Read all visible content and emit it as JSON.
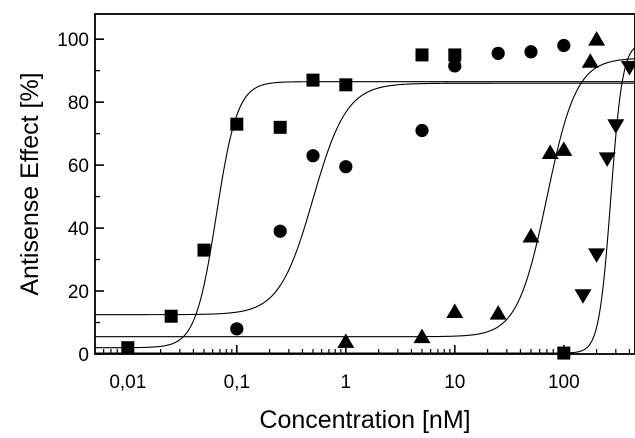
{
  "chart_data": {
    "type": "scatter",
    "title": "",
    "xlabel": "Concentration [nM]",
    "ylabel": "Antisense Effect [%]",
    "x_scale": "log",
    "xlim": [
      0.005,
      450
    ],
    "ylim": [
      0,
      108
    ],
    "x_ticks": [
      {
        "value": 0.01,
        "label": "0,01"
      },
      {
        "value": 0.1,
        "label": "0,1"
      },
      {
        "value": 1,
        "label": "1"
      },
      {
        "value": 10,
        "label": "10"
      },
      {
        "value": 100,
        "label": "100"
      }
    ],
    "y_ticks": [
      {
        "value": 0,
        "label": "0"
      },
      {
        "value": 20,
        "label": "20"
      },
      {
        "value": 40,
        "label": "40"
      },
      {
        "value": 60,
        "label": "60"
      },
      {
        "value": 80,
        "label": "80"
      },
      {
        "value": 100,
        "label": "100"
      }
    ],
    "grid": false,
    "legend": "none",
    "series": [
      {
        "marker": "square",
        "color": "#000000",
        "points": [
          [
            0.01,
            2
          ],
          [
            0.025,
            12
          ],
          [
            0.05,
            33
          ],
          [
            0.1,
            73
          ],
          [
            0.25,
            72
          ],
          [
            0.5,
            87
          ],
          [
            1,
            85.5
          ],
          [
            5,
            95
          ],
          [
            10,
            95
          ],
          [
            100,
            0.3
          ]
        ]
      },
      {
        "marker": "circle",
        "color": "#000000",
        "points": [
          [
            0.1,
            8
          ],
          [
            0.25,
            39
          ],
          [
            0.5,
            63
          ],
          [
            1,
            59.5
          ],
          [
            5,
            71
          ],
          [
            10,
            91.5
          ],
          [
            25,
            95.5
          ],
          [
            50,
            96
          ],
          [
            100,
            98
          ]
        ]
      },
      {
        "marker": "triangle-up",
        "color": "#000000",
        "points": [
          [
            1,
            4
          ],
          [
            5,
            5.5
          ],
          [
            10,
            13.5
          ],
          [
            25,
            13
          ],
          [
            50,
            37.5
          ],
          [
            75,
            64
          ],
          [
            100,
            65
          ],
          [
            175,
            93
          ],
          [
            200,
            100
          ]
        ]
      },
      {
        "marker": "triangle-down",
        "color": "#000000",
        "points": [
          [
            150,
            18.5
          ],
          [
            200,
            31.5
          ],
          [
            250,
            62
          ],
          [
            300,
            72.5
          ],
          [
            400,
            91
          ]
        ]
      }
    ],
    "fit_curves": [
      {
        "bottom": 2,
        "top": 86.5,
        "ec50": 0.065,
        "hill": 4.5
      },
      {
        "bottom": 12.5,
        "top": 86,
        "ec50": 0.5,
        "hill": 2.8
      },
      {
        "bottom": 5.5,
        "top": 94,
        "ec50": 70,
        "hill": 3.2
      },
      {
        "bottom": 0.3,
        "top": 99,
        "ec50": 270,
        "hill": 8
      }
    ]
  }
}
